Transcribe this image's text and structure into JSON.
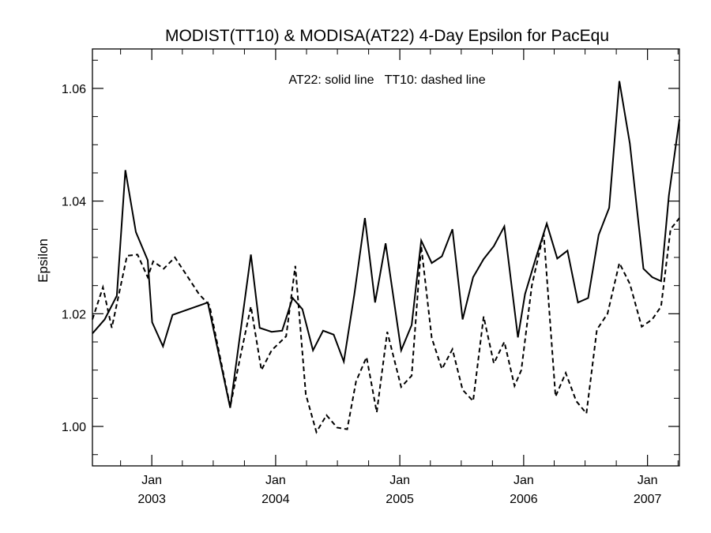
{
  "chart_data": {
    "type": "line",
    "title": "MODIST(TT10) & MODISA(AT22) 4-Day Epsilon for PacEqu",
    "annotation": "AT22: solid line   TT10: dashed line",
    "ylabel": "Epsilon",
    "xlabel": "",
    "xlim": [
      "2002-07-10",
      "2007-04-05"
    ],
    "ylim": [
      0.993,
      1.067
    ],
    "y_ticks": [
      1.0,
      1.02,
      1.04,
      1.06
    ],
    "y_tick_labels": [
      "1.00",
      "1.02",
      "1.04",
      "1.06"
    ],
    "x_ticks": [
      {
        "date": "2003-01-01",
        "month": "Jan",
        "year": "2003"
      },
      {
        "date": "2004-01-01",
        "month": "Jan",
        "year": "2004"
      },
      {
        "date": "2005-01-01",
        "month": "Jan",
        "year": "2005"
      },
      {
        "date": "2006-01-01",
        "month": "Jan",
        "year": "2006"
      },
      {
        "date": "2007-01-01",
        "month": "Jan",
        "year": "2007"
      }
    ],
    "series": [
      {
        "name": "AT22",
        "style": "solid",
        "points": [
          [
            "2002-07-10",
            1.0165
          ],
          [
            "2002-08-15",
            1.019
          ],
          [
            "2002-09-20",
            1.0232
          ],
          [
            "2002-10-15",
            1.0455
          ],
          [
            "2002-11-15",
            1.0345
          ],
          [
            "2002-12-20",
            1.0295
          ],
          [
            "2003-01-02",
            1.0185
          ],
          [
            "2003-02-03",
            1.0142
          ],
          [
            "2003-03-03",
            1.0198
          ],
          [
            "2003-06-15",
            1.022
          ],
          [
            "2003-08-20",
            1.0033
          ],
          [
            "2003-10-20",
            1.0305
          ],
          [
            "2003-11-15",
            1.0175
          ],
          [
            "2003-12-20",
            1.0168
          ],
          [
            "2004-01-20",
            1.017
          ],
          [
            "2004-02-20",
            1.0228
          ],
          [
            "2004-03-20",
            1.0208
          ],
          [
            "2004-04-20",
            1.0135
          ],
          [
            "2004-05-20",
            1.017
          ],
          [
            "2004-06-20",
            1.0163
          ],
          [
            "2004-07-20",
            1.0115
          ],
          [
            "2004-08-20",
            1.0235
          ],
          [
            "2004-09-20",
            1.037
          ],
          [
            "2004-10-20",
            1.022
          ],
          [
            "2004-11-20",
            1.0325
          ],
          [
            "2005-01-05",
            1.0135
          ],
          [
            "2005-02-05",
            1.018
          ],
          [
            "2005-03-05",
            1.033
          ],
          [
            "2005-04-05",
            1.029
          ],
          [
            "2005-05-05",
            1.0302
          ],
          [
            "2005-06-05",
            1.035
          ],
          [
            "2005-07-05",
            1.019
          ],
          [
            "2005-08-05",
            1.0265
          ],
          [
            "2005-09-05",
            1.0297
          ],
          [
            "2005-10-05",
            1.032
          ],
          [
            "2005-11-05",
            1.0355
          ],
          [
            "2005-12-15",
            1.0158
          ],
          [
            "2006-01-05",
            1.0235
          ],
          [
            "2006-02-05",
            1.0297
          ],
          [
            "2006-03-10",
            1.036
          ],
          [
            "2006-04-10",
            1.0298
          ],
          [
            "2006-05-10",
            1.0312
          ],
          [
            "2006-06-10",
            1.022
          ],
          [
            "2006-07-10",
            1.0228
          ],
          [
            "2006-08-10",
            1.034
          ],
          [
            "2006-09-10",
            1.0388
          ],
          [
            "2006-10-10",
            1.0613
          ],
          [
            "2006-11-10",
            1.0502
          ],
          [
            "2006-12-20",
            1.028
          ],
          [
            "2007-01-15",
            1.0265
          ],
          [
            "2007-02-10",
            1.0258
          ],
          [
            "2007-03-05",
            1.041
          ],
          [
            "2007-04-05",
            1.0545
          ]
        ]
      },
      {
        "name": "TT10",
        "style": "dashed",
        "points": [
          [
            "2002-07-10",
            1.019
          ],
          [
            "2002-08-10",
            1.0247
          ],
          [
            "2002-09-05",
            1.0175
          ],
          [
            "2002-10-20",
            1.0303
          ],
          [
            "2002-11-20",
            1.0305
          ],
          [
            "2002-12-20",
            1.0265
          ],
          [
            "2003-01-05",
            1.0293
          ],
          [
            "2003-02-05",
            1.028
          ],
          [
            "2003-03-10",
            1.03
          ],
          [
            "2003-05-20",
            1.0235
          ],
          [
            "2003-06-20",
            1.0215
          ],
          [
            "2003-08-20",
            1.0035
          ],
          [
            "2003-09-20",
            1.0127
          ],
          [
            "2003-10-20",
            1.0213
          ],
          [
            "2003-11-20",
            1.01
          ],
          [
            "2003-12-20",
            1.0135
          ],
          [
            "2004-02-01",
            1.016
          ],
          [
            "2004-02-28",
            1.0285
          ],
          [
            "2004-03-30",
            1.0057
          ],
          [
            "2004-04-30",
            0.999
          ],
          [
            "2004-05-30",
            1.002
          ],
          [
            "2004-06-30",
            0.9998
          ],
          [
            "2004-07-30",
            0.9995
          ],
          [
            "2004-08-25",
            1.008
          ],
          [
            "2004-09-25",
            1.0123
          ],
          [
            "2004-10-25",
            1.0025
          ],
          [
            "2004-11-25",
            1.0168
          ],
          [
            "2005-01-05",
            1.007
          ],
          [
            "2005-02-05",
            1.009
          ],
          [
            "2005-03-05",
            1.032
          ],
          [
            "2005-04-05",
            1.0157
          ],
          [
            "2005-05-05",
            1.0102
          ],
          [
            "2005-06-05",
            1.0137
          ],
          [
            "2005-07-05",
            1.0065
          ],
          [
            "2005-08-05",
            1.0045
          ],
          [
            "2005-09-05",
            1.0195
          ],
          [
            "2005-10-05",
            1.0112
          ],
          [
            "2005-11-05",
            1.015
          ],
          [
            "2005-12-05",
            1.0072
          ],
          [
            "2005-12-25",
            1.01
          ],
          [
            "2006-01-25",
            1.025
          ],
          [
            "2006-03-01",
            1.0343
          ],
          [
            "2006-04-05",
            1.0053
          ],
          [
            "2006-05-05",
            1.0095
          ],
          [
            "2006-06-05",
            1.0045
          ],
          [
            "2006-07-05",
            1.0023
          ],
          [
            "2006-08-05",
            1.0172
          ],
          [
            "2006-09-05",
            1.02
          ],
          [
            "2006-10-10",
            1.029
          ],
          [
            "2006-11-10",
            1.0253
          ],
          [
            "2006-12-15",
            1.0177
          ],
          [
            "2007-01-15",
            1.019
          ],
          [
            "2007-02-10",
            1.0213
          ],
          [
            "2007-03-10",
            1.035
          ],
          [
            "2007-04-05",
            1.037
          ]
        ]
      }
    ]
  }
}
